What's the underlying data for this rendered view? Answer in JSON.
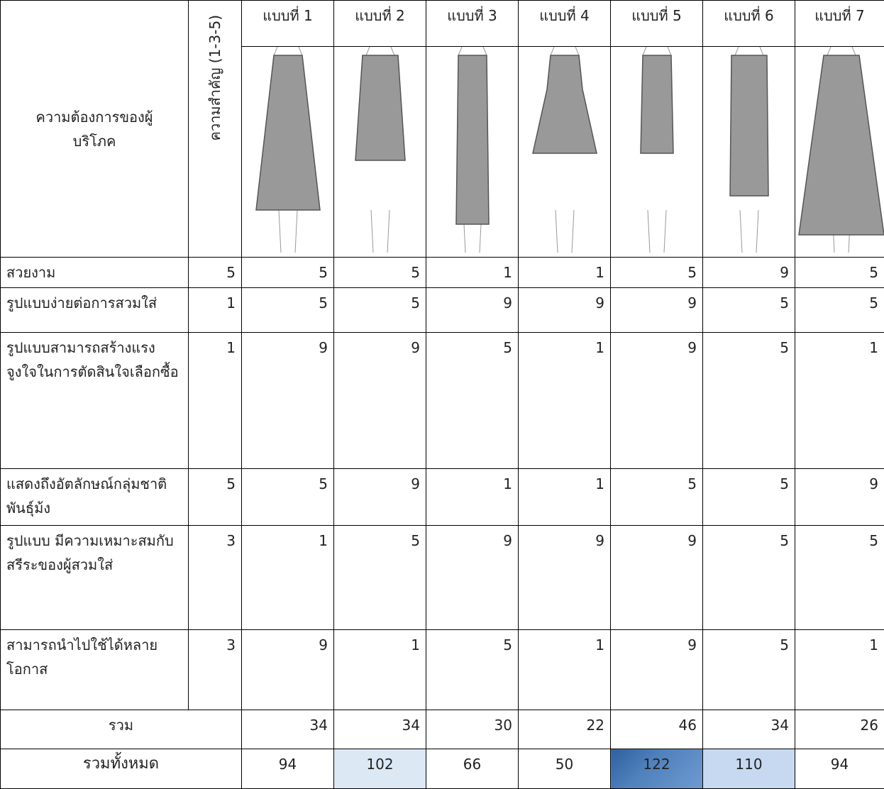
{
  "table": {
    "header": {
      "title": "ความต้องการของผู้บริโภค",
      "importance": "ความสำคัญ (1-3-5)",
      "designs": [
        "แบบที่ 1",
        "แบบที่ 2",
        "แบบที่ 3",
        "แบบที่ 4",
        "แบบที่ 5",
        "แบบที่ 6",
        "แบบที่ 7"
      ]
    },
    "rows": [
      {
        "label": "สวยงาม",
        "importance": 5,
        "scores": [
          5,
          5,
          1,
          1,
          5,
          9,
          5
        ]
      },
      {
        "label": "รูปแบบง่ายต่อการสวมใส่",
        "importance": 1,
        "scores": [
          5,
          5,
          9,
          9,
          9,
          5,
          5
        ]
      },
      {
        "label": "รูปแบบสามารถสร้างแรงจูงใจในการตัดสินใจเลือกซื้อ",
        "importance": 1,
        "scores": [
          9,
          9,
          5,
          1,
          9,
          5,
          1
        ]
      },
      {
        "label": "แสดงถึงอัตลักษณ์กลุ่มชาติพันธุ์ม้ง",
        "importance": 5,
        "scores": [
          5,
          9,
          1,
          1,
          5,
          5,
          9
        ]
      },
      {
        "label": "รูปแบบ มีความเหมาะสมกับสรีระของผู้สวมใส่",
        "importance": 3,
        "scores": [
          1,
          5,
          9,
          9,
          9,
          5,
          5
        ]
      },
      {
        "label": "สามารถนำไปใช้ได้หลายโอกาส",
        "importance": 3,
        "scores": [
          9,
          1,
          5,
          1,
          9,
          5,
          1
        ]
      }
    ],
    "subtotal": {
      "label": "รวม",
      "values": [
        34,
        34,
        30,
        22,
        46,
        34,
        26
      ]
    },
    "total": {
      "label": "รวมทั้งหมด",
      "values": [
        94,
        102,
        66,
        50,
        122,
        110,
        94
      ]
    }
  }
}
